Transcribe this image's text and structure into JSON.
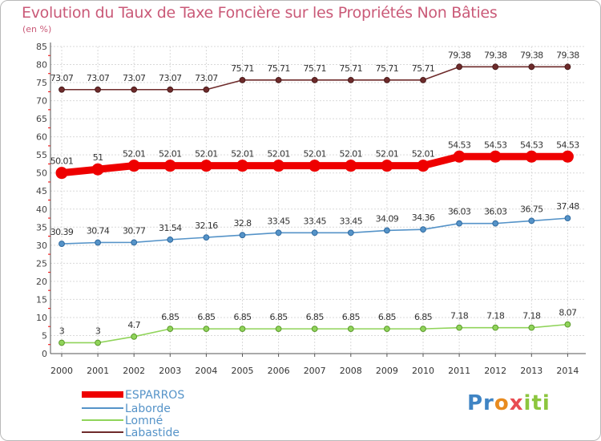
{
  "header": {
    "title": "Evolution du Taux de Taxe Foncière sur les Propriétés Non Bâties",
    "unit": "(en %)"
  },
  "logo": {
    "text": "Proxiti",
    "parts": [
      "Pr",
      "o",
      "x",
      "iti"
    ]
  },
  "colors": {
    "esparros": "#ee0000",
    "laborde": "#5593c8",
    "lomne": "#90d45a",
    "labastide": "#6e2b2b",
    "grid": "#d9d9d9",
    "title": "#ca5a78"
  },
  "chart_data": {
    "type": "line",
    "title": "Evolution du Taux de Taxe Foncière sur les Propriétés Non Bâties",
    "ylabel": "(en %)",
    "xlabel": "",
    "ylim": [
      0,
      85
    ],
    "yticks": [
      0,
      5,
      10,
      15,
      20,
      25,
      30,
      35,
      40,
      45,
      50,
      55,
      60,
      65,
      70,
      75,
      80,
      85
    ],
    "grid": true,
    "legend_position": "bottom-left",
    "x": [
      "2000",
      "2001",
      "2002",
      "2003",
      "2004",
      "2005",
      "2006",
      "2007",
      "2008",
      "2009",
      "2010",
      "2011",
      "2012",
      "2013",
      "2014"
    ],
    "series": [
      {
        "name": "ESPARROS",
        "key": "esparros",
        "values": [
          50.01,
          51,
          52.01,
          52.01,
          52.01,
          52.01,
          52.01,
          52.01,
          52.01,
          52.01,
          52.01,
          54.53,
          54.53,
          54.53,
          54.53
        ],
        "labels": [
          "50.01",
          "51",
          "52.01",
          "52.01",
          "52.01",
          "52.01",
          "52.01",
          "52.01",
          "52.01",
          "52.01",
          "52.01",
          "54.53",
          "54.53",
          "54.53",
          "54.53"
        ]
      },
      {
        "name": "Laborde",
        "key": "laborde",
        "values": [
          30.39,
          30.74,
          30.77,
          31.54,
          32.16,
          32.8,
          33.45,
          33.45,
          33.45,
          34.09,
          34.36,
          36.03,
          36.03,
          36.75,
          37.48
        ],
        "labels": [
          "30.39",
          "30.74",
          "30.77",
          "31.54",
          "32.16",
          "32.8",
          "33.45",
          "33.45",
          "33.45",
          "34.09",
          "34.36",
          "36.03",
          "36.03",
          "36.75",
          "37.48"
        ]
      },
      {
        "name": "Lomné",
        "key": "lomne",
        "values": [
          3,
          3,
          4.7,
          6.85,
          6.85,
          6.85,
          6.85,
          6.85,
          6.85,
          6.85,
          6.85,
          7.18,
          7.18,
          7.18,
          8.07
        ],
        "labels": [
          "3",
          "3",
          "4.7",
          "6.85",
          "6.85",
          "6.85",
          "6.85",
          "6.85",
          "6.85",
          "6.85",
          "6.85",
          "7.18",
          "7.18",
          "7.18",
          "8.07"
        ]
      },
      {
        "name": "Labastide",
        "key": "labastide",
        "values": [
          73.07,
          73.07,
          73.07,
          73.07,
          73.07,
          75.71,
          75.71,
          75.71,
          75.71,
          75.71,
          75.71,
          79.38,
          79.38,
          79.38,
          79.38
        ],
        "labels": [
          "73.07",
          "73.07",
          "73.07",
          "73.07",
          "73.07",
          "75.71",
          "75.71",
          "75.71",
          "75.71",
          "75.71",
          "75.71",
          "79.38",
          "79.38",
          "79.38",
          "79.38"
        ]
      }
    ]
  }
}
